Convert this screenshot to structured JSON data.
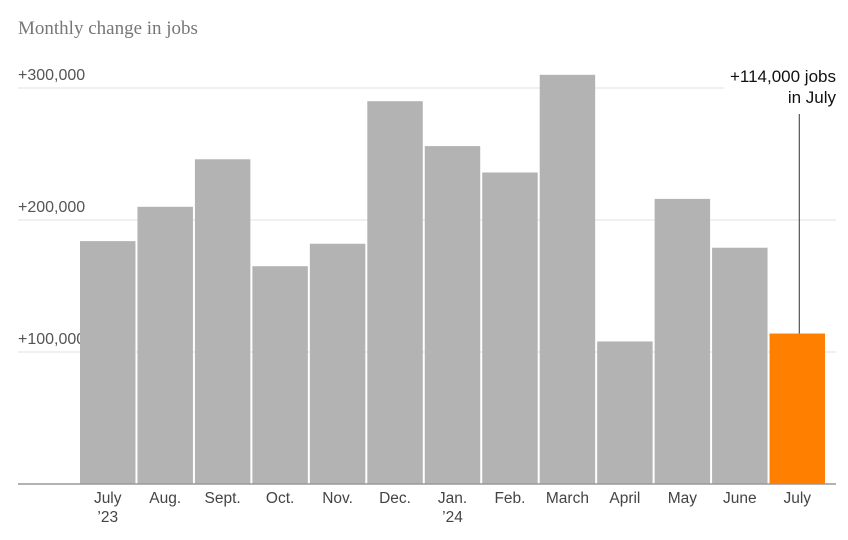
{
  "chart_data": {
    "type": "bar",
    "title": "Monthly change in jobs",
    "categories": [
      "July\n’23",
      "Aug.",
      "Sept.",
      "Oct.",
      "Nov.",
      "Dec.",
      "Jan.\n’24",
      "Feb.",
      "March",
      "April",
      "May",
      "June",
      "July"
    ],
    "values": [
      184000,
      210000,
      246000,
      165000,
      182000,
      290000,
      256000,
      236000,
      310000,
      108000,
      216000,
      179000,
      114000
    ],
    "colors": [
      "#b3b3b3",
      "#b3b3b3",
      "#b3b3b3",
      "#b3b3b3",
      "#b3b3b3",
      "#b3b3b3",
      "#b3b3b3",
      "#b3b3b3",
      "#b3b3b3",
      "#b3b3b3",
      "#b3b3b3",
      "#b3b3b3",
      "#ff7f00"
    ],
    "ylim": [
      0,
      330000
    ],
    "yticks": [
      {
        "value": 100000,
        "label": "+100,000"
      },
      {
        "value": 200000,
        "label": "+200,000"
      },
      {
        "value": 300000,
        "label": "+300,000"
      }
    ],
    "grid": true,
    "annotation": {
      "text": "+114,000 jobs\nin July",
      "index": 12
    }
  }
}
